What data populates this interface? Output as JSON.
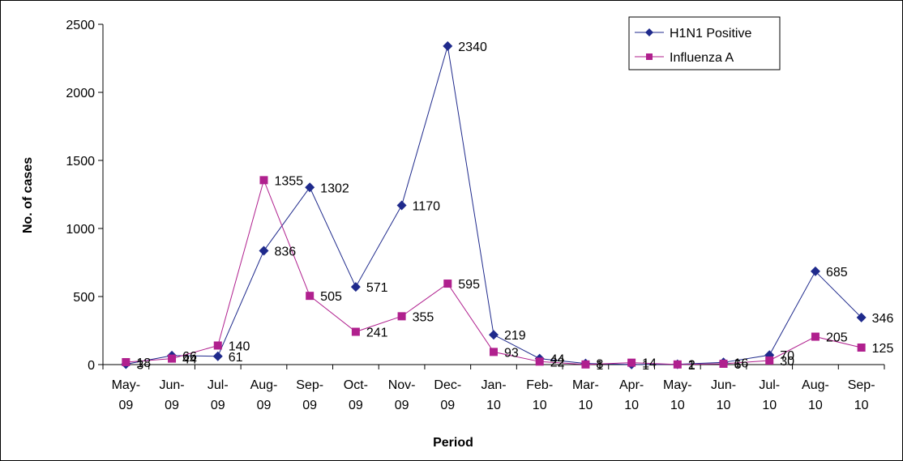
{
  "chart_data": {
    "type": "line",
    "xlabel": "Period",
    "ylabel": "No. of cases",
    "ylim": [
      0,
      2500
    ],
    "yticks": [
      0,
      500,
      1000,
      1500,
      2000,
      2500
    ],
    "grid": false,
    "legend_position": "top-right",
    "categories": [
      [
        "May-",
        "09"
      ],
      [
        "Jun-",
        "09"
      ],
      [
        "Jul-",
        "09"
      ],
      [
        "Aug-",
        "09"
      ],
      [
        "Sep-",
        "09"
      ],
      [
        "Oct-",
        "09"
      ],
      [
        "Nov-",
        "09"
      ],
      [
        "Dec-",
        "09"
      ],
      [
        "Jan-",
        "10"
      ],
      [
        "Feb-",
        "10"
      ],
      [
        "Mar-",
        "10"
      ],
      [
        "Apr-",
        "10"
      ],
      [
        "May-",
        "10"
      ],
      [
        "Jun-",
        "10"
      ],
      [
        "Jul-",
        "10"
      ],
      [
        "Aug-",
        "10"
      ],
      [
        "Sep-",
        "10"
      ]
    ],
    "series": [
      {
        "name": "H1N1 Positive",
        "color": "#1f2a8c",
        "marker": "diamond",
        "values": [
          3,
          66,
          61,
          836,
          1302,
          571,
          1170,
          2340,
          219,
          44,
          8,
          1,
          2,
          16,
          70,
          685,
          346
        ],
        "labels": [
          "3",
          "66",
          "61",
          "836",
          "1302",
          "571",
          "1170",
          "2340",
          "219",
          "44",
          "8",
          "1",
          "2",
          "16",
          "70",
          "685",
          "346"
        ]
      },
      {
        "name": "Influenza A",
        "color": "#b0208e",
        "marker": "square",
        "values": [
          18,
          44,
          140,
          1355,
          505,
          241,
          355,
          595,
          93,
          22,
          1,
          14,
          1,
          6,
          30,
          205,
          125
        ],
        "labels": [
          "18",
          "44",
          "140",
          "1355",
          "505",
          "241",
          "355",
          "595",
          "93",
          "22",
          "1",
          "14",
          "1",
          "6",
          "30",
          "205",
          "125"
        ]
      }
    ]
  }
}
